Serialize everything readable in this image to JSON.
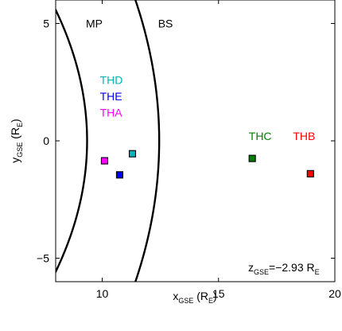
{
  "chart_data": {
    "type": "scatter",
    "xlim": [
      8,
      20
    ],
    "ylim": [
      -6,
      6
    ],
    "xticks": [
      10,
      15,
      20
    ],
    "yticks": [
      -5,
      0,
      5
    ],
    "xticklabels": [
      "10",
      "15",
      "20"
    ],
    "yticklabels": [
      "−5",
      "0",
      "5"
    ],
    "xlabel": {
      "main": "x",
      "sub": "GSE",
      "unit_open": " (R",
      "unit_sub": "E",
      "unit_close": ")"
    },
    "ylabel": {
      "main": "y",
      "sub": "GSE",
      "unit_open": " (R",
      "unit_sub": "E",
      "unit_close": ")"
    },
    "grid": false,
    "boundaries": [
      {
        "name": "MP",
        "label": "MP",
        "x0": 9.35,
        "a": 0.0434,
        "label_at": [
          9.3,
          5.0
        ]
      },
      {
        "name": "BS",
        "label": "BS",
        "x0": 12.45,
        "a": 0.0284,
        "label_at": [
          12.4,
          5.0
        ]
      }
    ],
    "points": [
      {
        "name": "THD",
        "label": "THD",
        "x": 11.3,
        "y": -0.55,
        "color": "#00b5b5",
        "label_at": [
          9.9,
          2.6
        ]
      },
      {
        "name": "THE",
        "label": "THE",
        "x": 10.75,
        "y": -1.45,
        "color": "#0000ff",
        "label_at": [
          9.9,
          1.9
        ]
      },
      {
        "name": "THA",
        "label": "THA",
        "x": 10.1,
        "y": -0.85,
        "color": "#ff00ff",
        "label_at": [
          9.9,
          1.2
        ]
      },
      {
        "name": "THC",
        "label": "THC",
        "x": 16.45,
        "y": -0.75,
        "color": "#007f00",
        "label_at": [
          16.3,
          0.2
        ]
      },
      {
        "name": "THB",
        "label": "THB",
        "x": 18.95,
        "y": -1.4,
        "color": "#ff0000",
        "label_at": [
          18.2,
          0.2
        ]
      }
    ],
    "annotation": {
      "main": "z",
      "sub": "GSE",
      "value": "=−2.93 R",
      "value_sub": "E"
    }
  }
}
